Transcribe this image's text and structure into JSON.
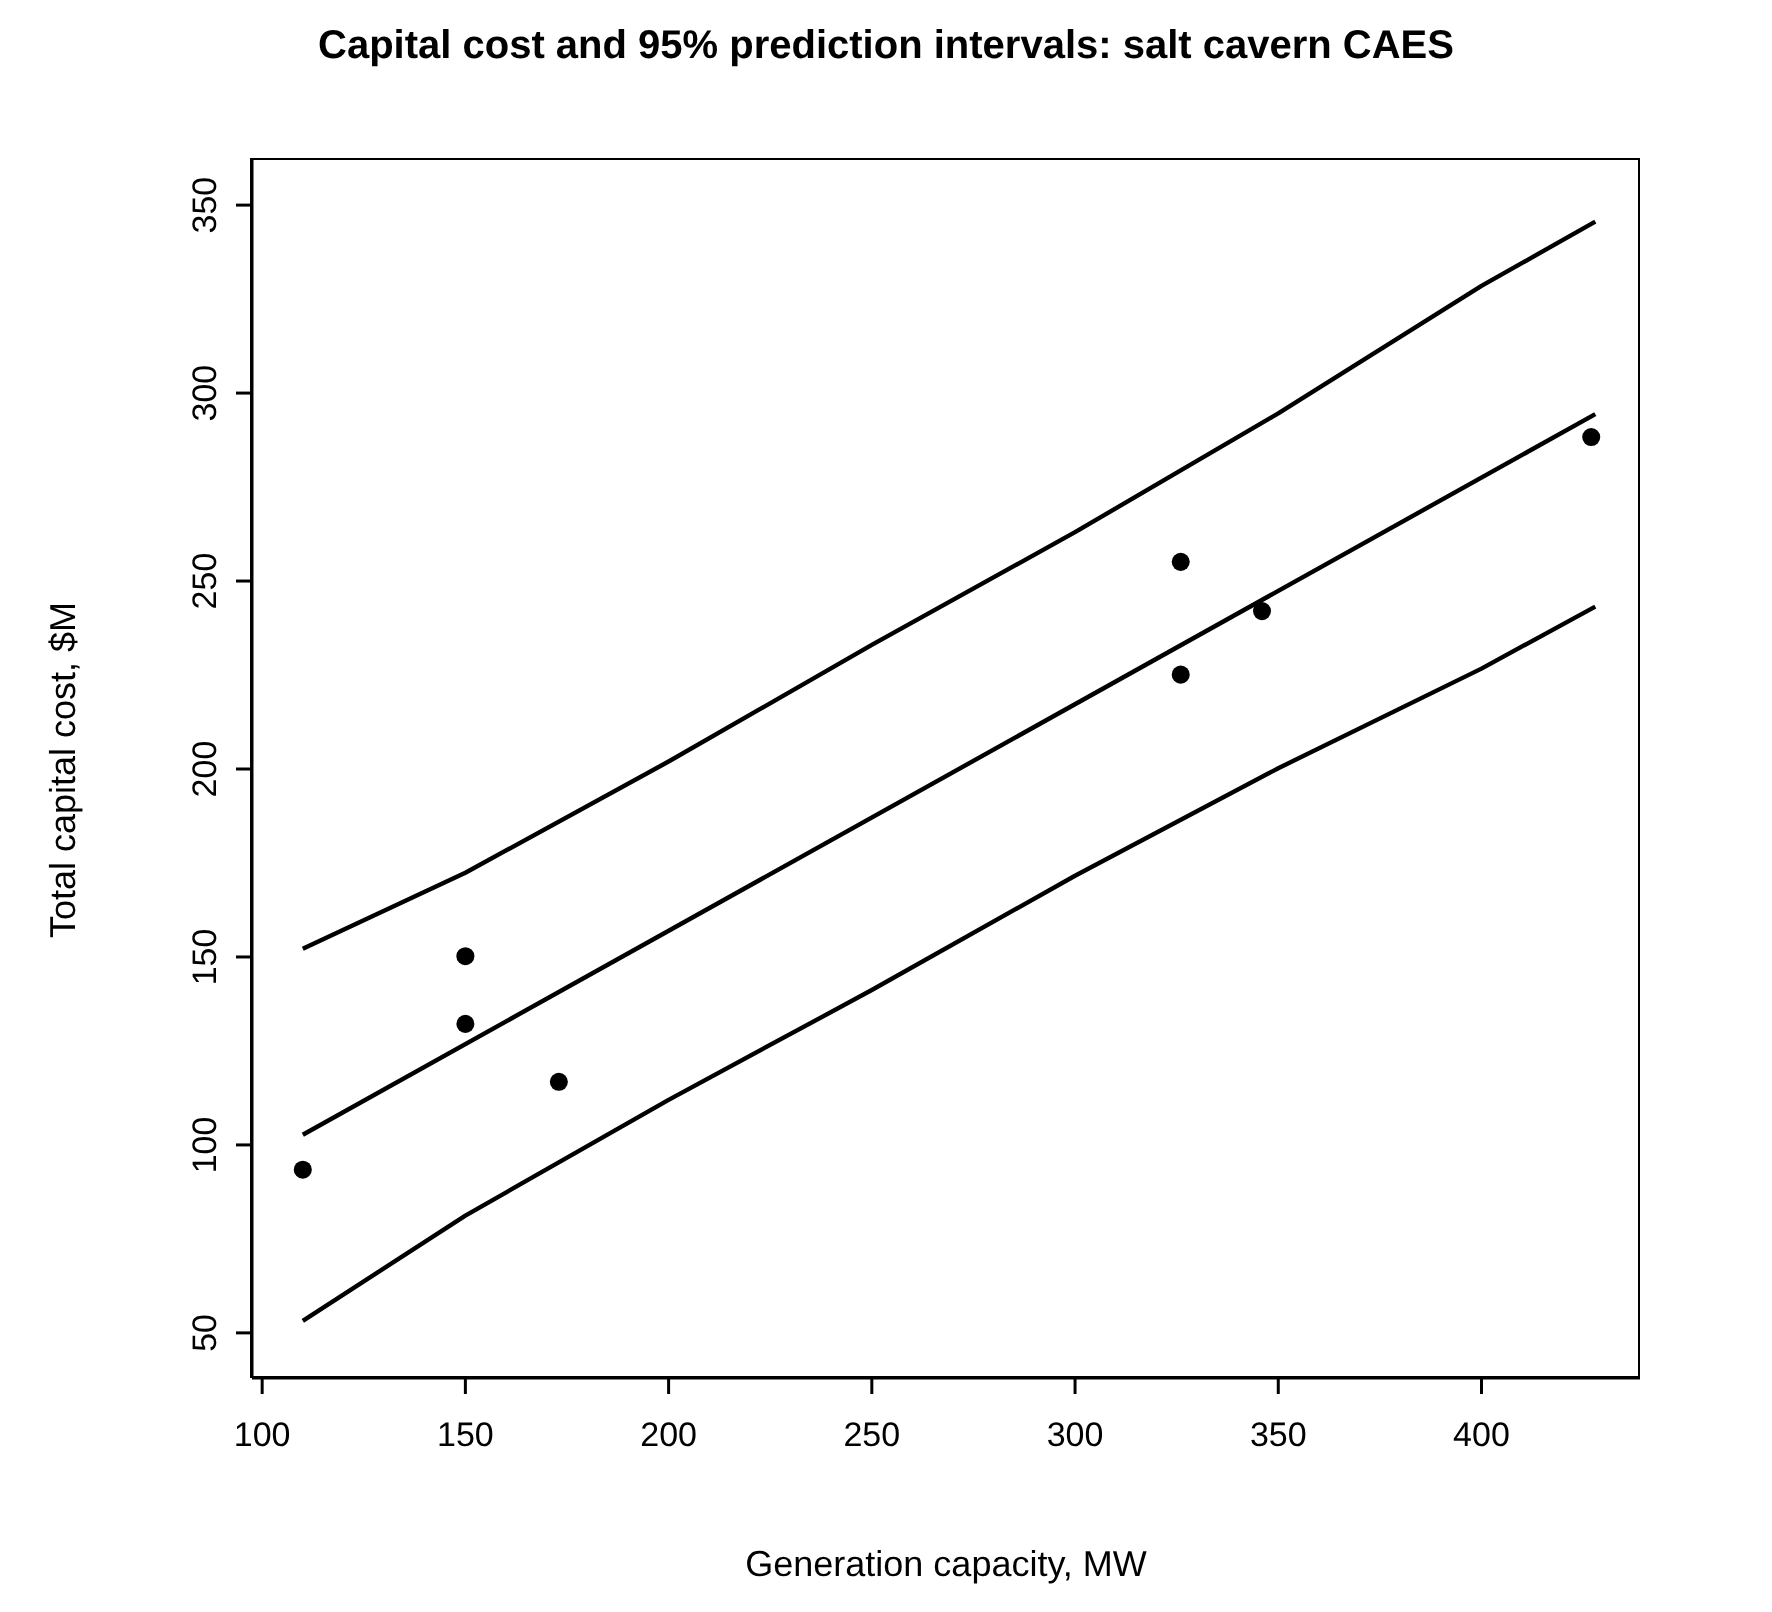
{
  "chart_data": {
    "type": "scatter",
    "title": "Capital cost and 95% prediction intervals: salt cavern CAES",
    "xlabel": "Generation capacity, MW",
    "ylabel": "Total capital cost, $M",
    "xlim": [
      97.5,
      439
    ],
    "xticks": [
      100,
      150,
      200,
      250,
      300,
      350,
      400
    ],
    "ylim": [
      38,
      362
    ],
    "yticks": [
      50,
      100,
      150,
      200,
      250,
      300,
      350
    ],
    "grid": false,
    "series": [
      {
        "color": "#000000",
        "marker": "circle",
        "x": [
          110,
          150,
          150,
          173,
          326,
          326,
          346,
          427
        ],
        "values": [
          93.4,
          150.2,
          132.2,
          116.8,
          255.1,
          225.1,
          242,
          288.3
        ]
      },
      {
        "type": "line",
        "color": "#000000",
        "marker": "none",
        "line_style": "solid",
        "x": [
          110,
          428
        ],
        "values": [
          102.7,
          294.4
        ]
      },
      {
        "type": "line",
        "color": "#000000",
        "marker": "none",
        "line_style": "solid",
        "x": [
          110,
          150,
          200,
          250,
          300,
          350,
          400,
          428
        ],
        "values": [
          152.2,
          172.4,
          202,
          233,
          263,
          294.6,
          328.5,
          345.6
        ]
      },
      {
        "type": "line",
        "color": "#000000",
        "marker": "none",
        "line_style": "solid",
        "x": [
          110,
          150,
          200,
          250,
          300,
          350,
          400,
          428
        ],
        "values": [
          53.2,
          81.2,
          112,
          141.2,
          171.6,
          200.2,
          226.7,
          243.2
        ]
      }
    ]
  }
}
